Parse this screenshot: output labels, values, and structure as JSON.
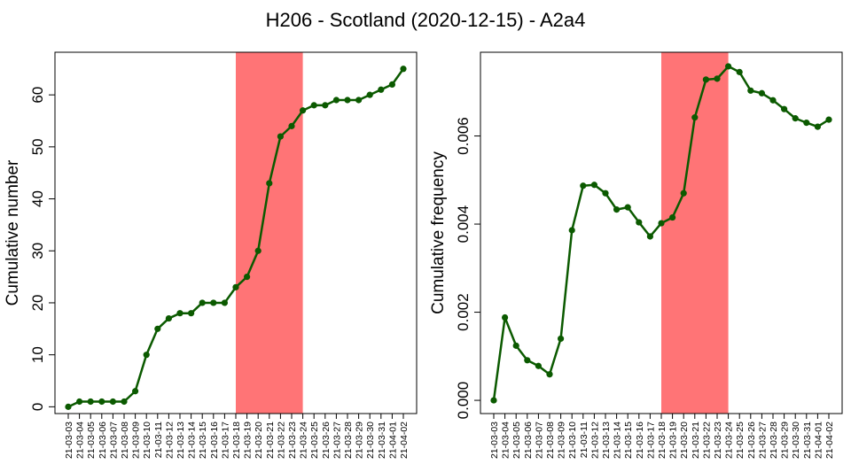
{
  "figure": {
    "title": "H206 - Scotland (2020-12-15) - A2a4"
  },
  "colors": {
    "line": "#0b5a00",
    "highlight": "#ff7476",
    "axis": "#000000"
  },
  "chart_data": [
    {
      "type": "line",
      "title": "",
      "xlabel": "",
      "ylabel": "Cumulative number",
      "ylim": [
        -1.3,
        68.2
      ],
      "yticks": [
        0,
        10,
        20,
        30,
        40,
        50,
        60
      ],
      "ytick_labels": [
        "0",
        "10",
        "20",
        "30",
        "40",
        "50",
        "60"
      ],
      "highlight": {
        "from": "21-03-18",
        "to": "21-03-24"
      },
      "categories": [
        "21-03-03",
        "21-03-04",
        "21-03-05",
        "21-03-06",
        "21-03-07",
        "21-03-08",
        "21-03-09",
        "21-03-10",
        "21-03-11",
        "21-03-12",
        "21-03-13",
        "21-03-14",
        "21-03-15",
        "21-03-16",
        "21-03-17",
        "21-03-18",
        "21-03-19",
        "21-03-20",
        "21-03-21",
        "21-03-22",
        "21-03-23",
        "21-03-24",
        "21-03-25",
        "21-03-26",
        "21-03-27",
        "21-03-28",
        "21-03-29",
        "21-03-30",
        "21-03-31",
        "21-04-01",
        "21-04-02"
      ],
      "values": [
        0,
        1,
        1,
        1,
        1,
        1,
        3,
        10,
        15,
        17,
        18,
        18,
        20,
        20,
        20,
        23,
        25,
        30,
        43,
        52,
        54,
        57,
        58,
        58,
        59,
        59,
        59,
        60,
        61,
        62,
        65
      ],
      "grid": false
    },
    {
      "type": "line",
      "title": "",
      "xlabel": "",
      "ylabel": "Cumulative frequency",
      "ylim": [
        -0.0003,
        0.0079
      ],
      "yticks": [
        0,
        0.002,
        0.004,
        0.006
      ],
      "ytick_labels": [
        "0.000",
        "0.002",
        "0.004",
        "0.006"
      ],
      "highlight": {
        "from": "21-03-18",
        "to": "21-03-24"
      },
      "categories": [
        "21-03-03",
        "21-03-04",
        "21-03-05",
        "21-03-06",
        "21-03-07",
        "21-03-08",
        "21-03-09",
        "21-03-10",
        "21-03-11",
        "21-03-12",
        "21-03-13",
        "21-03-14",
        "21-03-15",
        "21-03-16",
        "21-03-17",
        "21-03-18",
        "21-03-19",
        "21-03-20",
        "21-03-21",
        "21-03-22",
        "21-03-23",
        "21-03-24",
        "21-03-25",
        "21-03-26",
        "21-03-27",
        "21-03-28",
        "21-03-29",
        "21-03-30",
        "21-03-31",
        "21-04-01",
        "21-04-02"
      ],
      "values": [
        0.0,
        0.00188,
        0.00124,
        0.00091,
        0.00078,
        0.00059,
        0.0014,
        0.00386,
        0.00487,
        0.00489,
        0.0047,
        0.00433,
        0.00438,
        0.00404,
        0.00372,
        0.00402,
        0.00415,
        0.0047,
        0.00642,
        0.00728,
        0.0073,
        0.00758,
        0.00745,
        0.00703,
        0.00697,
        0.00681,
        0.00661,
        0.0064,
        0.0063,
        0.00621,
        0.00637
      ],
      "grid": false
    }
  ]
}
